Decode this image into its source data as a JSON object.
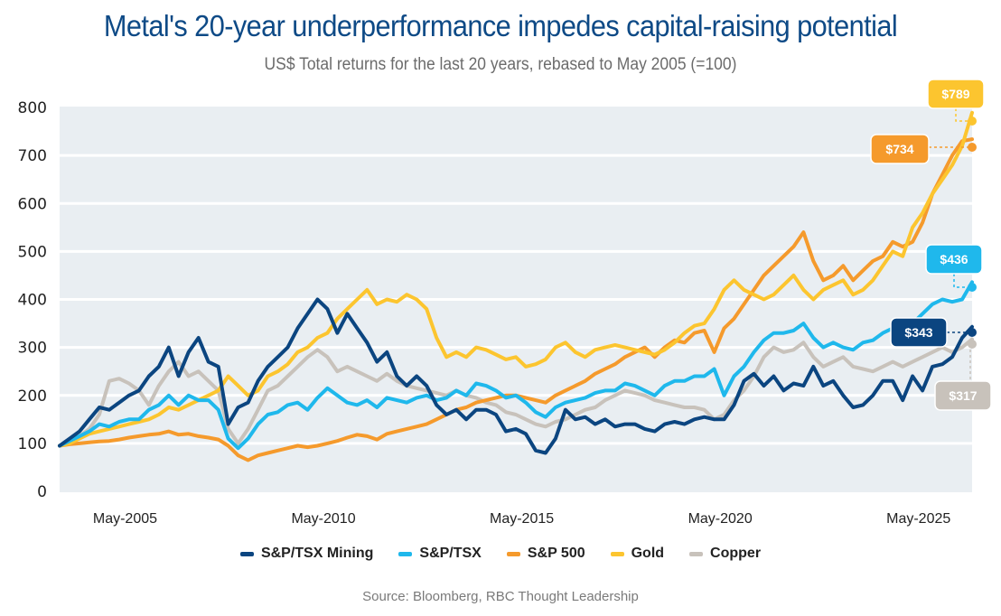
{
  "header": {
    "title": "Metal's 20-year underperformance impedes capital-raising potential",
    "subtitle": "US$ Total returns for the last 20 years, rebased to May 2005 (=100)"
  },
  "source": "Source: Bloomberg, RBC Thought Leadership",
  "colors": {
    "plot_background": "#e9eef2",
    "gridline": "#ffffff",
    "mining": "#0b4580",
    "tsx": "#1fb8ec",
    "sp500": "#f59a2c",
    "gold": "#fcc52f",
    "copper": "#c8c2bb"
  },
  "chart_data": {
    "type": "line",
    "title": "Metal's 20-year underperformance impedes capital-raising potential",
    "subtitle": "US$ Total returns for the last 20 years, rebased to May 2005 (=100)",
    "xlabel": "",
    "ylabel": "",
    "ylim": [
      0,
      800
    ],
    "xlim": [
      2003.75,
      2026.75
    ],
    "yticks": [
      0,
      100,
      200,
      300,
      400,
      500,
      600,
      700,
      800
    ],
    "xticks": [
      {
        "value": 2005.4,
        "label": "May-2005"
      },
      {
        "value": 2010.4,
        "label": "May-2010"
      },
      {
        "value": 2015.4,
        "label": "May-2015"
      },
      {
        "value": 2020.4,
        "label": "May-2020"
      },
      {
        "value": 2025.4,
        "label": "May-2025"
      }
    ],
    "grid": "horizontal",
    "legend": "bottom-center",
    "x": [
      2003.75,
      2004.0,
      2004.25,
      2004.5,
      2004.75,
      2005.0,
      2005.25,
      2005.5,
      2005.75,
      2006.0,
      2006.25,
      2006.5,
      2006.75,
      2007.0,
      2007.25,
      2007.5,
      2007.75,
      2008.0,
      2008.25,
      2008.5,
      2008.75,
      2009.0,
      2009.25,
      2009.5,
      2009.75,
      2010.0,
      2010.25,
      2010.5,
      2010.75,
      2011.0,
      2011.25,
      2011.5,
      2011.75,
      2012.0,
      2012.25,
      2012.5,
      2012.75,
      2013.0,
      2013.25,
      2013.5,
      2013.75,
      2014.0,
      2014.25,
      2014.5,
      2014.75,
      2015.0,
      2015.25,
      2015.5,
      2015.75,
      2016.0,
      2016.25,
      2016.5,
      2016.75,
      2017.0,
      2017.25,
      2017.5,
      2017.75,
      2018.0,
      2018.25,
      2018.5,
      2018.75,
      2019.0,
      2019.25,
      2019.5,
      2019.75,
      2020.0,
      2020.25,
      2020.5,
      2020.75,
      2021.0,
      2021.25,
      2021.5,
      2021.75,
      2022.0,
      2022.25,
      2022.5,
      2022.75,
      2023.0,
      2023.25,
      2023.5,
      2023.75,
      2024.0,
      2024.25,
      2024.5,
      2024.75,
      2025.0,
      2025.25,
      2025.5,
      2025.75,
      2026.0,
      2026.25,
      2026.5,
      2026.75
    ],
    "series": [
      {
        "key": "mining",
        "name": "S&P/TSX Mining",
        "end_label": "$343",
        "end_value": 343,
        "values": [
          95,
          110,
          125,
          150,
          175,
          170,
          185,
          200,
          210,
          240,
          260,
          300,
          240,
          290,
          320,
          270,
          260,
          140,
          175,
          185,
          230,
          260,
          280,
          300,
          340,
          370,
          400,
          380,
          330,
          370,
          340,
          310,
          270,
          290,
          240,
          220,
          240,
          220,
          180,
          160,
          170,
          150,
          170,
          170,
          160,
          125,
          130,
          120,
          85,
          80,
          110,
          170,
          150,
          155,
          140,
          150,
          135,
          140,
          140,
          130,
          125,
          140,
          145,
          140,
          150,
          155,
          150,
          150,
          180,
          230,
          245,
          220,
          240,
          210,
          225,
          220,
          260,
          220,
          230,
          200,
          175,
          180,
          200,
          230,
          230,
          190,
          240,
          210,
          260,
          265,
          280,
          320,
          343
        ]
      },
      {
        "key": "tsx",
        "name": "S&P/TSX",
        "end_label": "$436",
        "end_value": 436,
        "values": [
          95,
          105,
          115,
          125,
          140,
          135,
          145,
          150,
          150,
          170,
          180,
          200,
          180,
          200,
          190,
          190,
          170,
          110,
          90,
          110,
          140,
          160,
          165,
          180,
          185,
          170,
          195,
          215,
          200,
          185,
          180,
          190,
          175,
          195,
          190,
          185,
          195,
          200,
          190,
          195,
          210,
          200,
          225,
          220,
          210,
          195,
          200,
          185,
          165,
          155,
          175,
          185,
          190,
          195,
          205,
          210,
          210,
          225,
          220,
          210,
          200,
          220,
          230,
          230,
          240,
          240,
          255,
          200,
          240,
          260,
          290,
          315,
          330,
          330,
          335,
          350,
          320,
          300,
          310,
          300,
          295,
          310,
          315,
          330,
          340,
          330,
          350,
          370,
          390,
          400,
          395,
          400,
          436
        ]
      },
      {
        "key": "sp500",
        "name": "S&P 500",
        "end_label": "$734",
        "end_value": 734,
        "values": [
          95,
          98,
          100,
          102,
          104,
          105,
          108,
          112,
          115,
          118,
          120,
          125,
          118,
          120,
          115,
          112,
          108,
          95,
          75,
          65,
          75,
          80,
          85,
          90,
          95,
          92,
          95,
          100,
          105,
          112,
          118,
          115,
          108,
          120,
          125,
          130,
          135,
          140,
          150,
          160,
          170,
          175,
          185,
          190,
          195,
          200,
          200,
          195,
          190,
          185,
          200,
          210,
          220,
          230,
          245,
          255,
          265,
          280,
          290,
          300,
          280,
          300,
          315,
          310,
          330,
          335,
          290,
          340,
          360,
          390,
          420,
          450,
          470,
          490,
          510,
          540,
          480,
          440,
          450,
          470,
          440,
          460,
          480,
          490,
          520,
          510,
          520,
          560,
          620,
          660,
          700,
          730,
          734
        ]
      },
      {
        "key": "gold",
        "name": "Gold",
        "end_label": "$789",
        "end_value": 789,
        "values": [
          95,
          100,
          110,
          120,
          125,
          130,
          135,
          140,
          145,
          150,
          160,
          175,
          170,
          180,
          190,
          200,
          210,
          240,
          220,
          200,
          210,
          240,
          250,
          265,
          290,
          300,
          320,
          330,
          360,
          380,
          400,
          420,
          390,
          400,
          395,
          410,
          400,
          380,
          320,
          280,
          290,
          280,
          300,
          295,
          285,
          275,
          280,
          260,
          265,
          275,
          300,
          310,
          290,
          280,
          295,
          300,
          305,
          300,
          295,
          290,
          285,
          295,
          310,
          330,
          345,
          350,
          380,
          420,
          440,
          420,
          410,
          400,
          410,
          430,
          450,
          420,
          400,
          420,
          430,
          440,
          410,
          420,
          440,
          470,
          500,
          490,
          550,
          580,
          620,
          650,
          680,
          720,
          789
        ]
      },
      {
        "key": "copper",
        "name": "Copper",
        "end_label": "$317",
        "end_value": 317,
        "values": [
          95,
          105,
          115,
          130,
          160,
          230,
          235,
          225,
          210,
          180,
          220,
          250,
          270,
          240,
          250,
          230,
          210,
          130,
          100,
          130,
          170,
          210,
          220,
          240,
          260,
          280,
          295,
          280,
          250,
          260,
          250,
          240,
          230,
          245,
          230,
          220,
          215,
          210,
          205,
          200,
          210,
          200,
          195,
          185,
          180,
          165,
          160,
          150,
          140,
          135,
          145,
          150,
          160,
          170,
          175,
          190,
          200,
          210,
          205,
          200,
          190,
          185,
          180,
          175,
          175,
          170,
          150,
          160,
          190,
          210,
          240,
          280,
          300,
          290,
          295,
          310,
          280,
          260,
          270,
          280,
          260,
          255,
          250,
          260,
          270,
          260,
          270,
          280,
          290,
          300,
          290,
          300,
          317
        ]
      }
    ]
  }
}
